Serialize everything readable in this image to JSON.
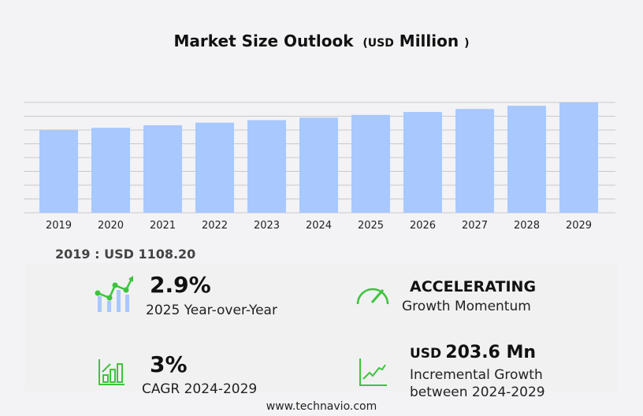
{
  "header": {
    "title": "Market Size Outlook",
    "unit_prefix": "(",
    "unit": "USD",
    "unit_word": "Million",
    "unit_suffix": ")"
  },
  "chart_data": {
    "type": "bar",
    "categories": [
      "2019",
      "2020",
      "2021",
      "2022",
      "2023",
      "2024",
      "2025",
      "2026",
      "2027",
      "2028",
      "2029"
    ],
    "values": [
      1108.2,
      1141,
      1175,
      1210,
      1244,
      1278,
      1315,
      1354,
      1395,
      1437,
      1482
    ],
    "ylim": [
      0,
      1482
    ],
    "grid": true,
    "bar_color": "#a8c8fe",
    "xlabel": "",
    "ylabel": ""
  },
  "base_year": {
    "text": "2019 : USD  1108.20"
  },
  "stats": {
    "yoy": {
      "value": "2.9%",
      "label": "2025 Year-over-Year"
    },
    "momentum": {
      "value": "ACCELERATING",
      "label": "Growth Momentum"
    },
    "cagr": {
      "value": "3%",
      "label": "CAGR 2024-2029"
    },
    "incremental": {
      "prefix": "USD",
      "value": "203.6 Mn",
      "label1": "Incremental Growth",
      "label2": "between 2024-2029"
    }
  },
  "colors": {
    "accent": "#3cc43c",
    "bar": "#a8c8fe"
  },
  "footer": {
    "url": "www.technavio.com"
  }
}
